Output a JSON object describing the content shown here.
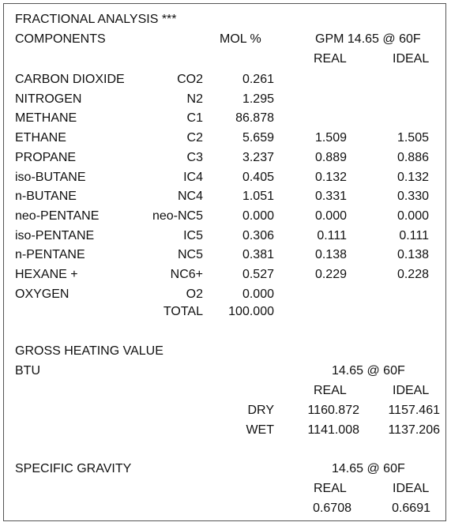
{
  "title": "FRACTIONAL ANALYSIS ***",
  "header": {
    "components": "COMPONENTS",
    "mol_pct": "MOL %",
    "gpm": "GPM 14.65 @ 60F",
    "real": "REAL",
    "ideal": "IDEAL"
  },
  "rows": [
    {
      "name": "CARBON DIOXIDE",
      "symbol": "CO2",
      "mol": "0.261",
      "real": "",
      "ideal": ""
    },
    {
      "name": "NITROGEN",
      "symbol": "N2",
      "mol": "1.295",
      "real": "",
      "ideal": ""
    },
    {
      "name": "METHANE",
      "symbol": "C1",
      "mol": "86.878",
      "real": "",
      "ideal": ""
    },
    {
      "name": "ETHANE",
      "symbol": "C2",
      "mol": "5.659",
      "real": "1.509",
      "ideal": "1.505"
    },
    {
      "name": "PROPANE",
      "symbol": "C3",
      "mol": "3.237",
      "real": "0.889",
      "ideal": "0.886"
    },
    {
      "name": "iso-BUTANE",
      "symbol": "IC4",
      "mol": "0.405",
      "real": "0.132",
      "ideal": "0.132"
    },
    {
      "name": "n-BUTANE",
      "symbol": "NC4",
      "mol": "1.051",
      "real": "0.331",
      "ideal": "0.330"
    },
    {
      "name": "neo-PENTANE",
      "symbol": "neo-NC5",
      "mol": "0.000",
      "real": "0.000",
      "ideal": "0.000"
    },
    {
      "name": "iso-PENTANE",
      "symbol": "IC5",
      "mol": "0.306",
      "real": "0.111",
      "ideal": "0.111"
    },
    {
      "name": "n-PENTANE",
      "symbol": "NC5",
      "mol": "0.381",
      "real": "0.138",
      "ideal": "0.138"
    },
    {
      "name": "HEXANE +",
      "symbol": "NC6+",
      "mol": "0.527",
      "real": "0.229",
      "ideal": "0.228"
    },
    {
      "name": "OXYGEN",
      "symbol": "O2",
      "mol": "0.000",
      "real": "",
      "ideal": ""
    }
  ],
  "total": {
    "label": "TOTAL",
    "mol": "100.000"
  },
  "heating": {
    "title": "GROSS HEATING VALUE",
    "btu": "BTU",
    "cond": "14.65 @ 60F",
    "real": "REAL",
    "ideal": "IDEAL",
    "dry_label": "DRY",
    "dry_real": "1160.872",
    "dry_ideal": "1157.461",
    "wet_label": "WET",
    "wet_real": "1141.008",
    "wet_ideal": "1137.206"
  },
  "gravity": {
    "title": "SPECIFIC GRAVITY",
    "cond": "14.65 @ 60F",
    "real": "REAL",
    "ideal": "IDEAL",
    "real_value": "0.6708",
    "ideal_value": "0.6691"
  }
}
